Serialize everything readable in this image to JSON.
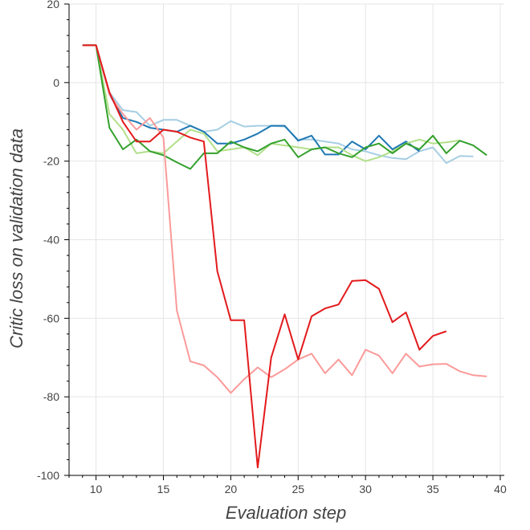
{
  "chart_data": {
    "type": "line",
    "title": "",
    "xlabel": "Evaluation step",
    "ylabel": "Critic loss on validation data",
    "xlim": [
      8,
      40.3
    ],
    "ylim": [
      -100,
      20
    ],
    "x_ticks": [
      10,
      15,
      20,
      25,
      30,
      35,
      40
    ],
    "y_ticks": [
      20,
      0,
      -20,
      -40,
      -60,
      -80,
      -100
    ],
    "x_tick_labels": [
      "10",
      "15",
      "20",
      "25",
      "30",
      "35",
      "40"
    ],
    "y_tick_labels": [
      "20",
      "0",
      "-20",
      "-40",
      "-60",
      "-80",
      "-100"
    ],
    "grid": true,
    "legend": "none",
    "series": [
      {
        "name": "light-blue",
        "color": "#a6cee3",
        "x": [
          9,
          10,
          11,
          12,
          13,
          14,
          15,
          16,
          17,
          18,
          19,
          20,
          21,
          22,
          23,
          24,
          25,
          26,
          27,
          28,
          29,
          30,
          31,
          32,
          33,
          34,
          35,
          36,
          37,
          38
        ],
        "values": [
          9.5,
          9.5,
          -2.5,
          -7,
          -7.5,
          -11,
          -9.5,
          -9.5,
          -11,
          -12.5,
          -12,
          -9.8,
          -11.2,
          -11,
          -11,
          -11.2,
          -14.5,
          -14.5,
          -15,
          -15.5,
          -17,
          -17.5,
          -18.5,
          -19.2,
          -19.5,
          -17.5,
          -16.5,
          -20.5,
          -18.7,
          -18.8
        ]
      },
      {
        "name": "dark-blue",
        "color": "#1f78b4",
        "x": [
          9,
          10,
          11,
          12,
          13,
          14,
          15,
          16,
          17,
          18,
          19,
          20,
          21,
          22,
          23,
          24,
          25,
          26,
          27,
          28,
          29,
          30,
          31,
          32,
          33,
          34
        ],
        "values": [
          9.5,
          9.5,
          -3,
          -9,
          -10,
          -11.5,
          -12,
          -12.5,
          -11,
          -12.5,
          -15.5,
          -15.5,
          -14.5,
          -13,
          -11,
          -11,
          -14.8,
          -13.5,
          -18.3,
          -18.3,
          -15,
          -17,
          -13.5,
          -17,
          -15,
          -17.5
        ]
      },
      {
        "name": "light-green",
        "color": "#b2df8a",
        "x": [
          9,
          10,
          11,
          12,
          13,
          14,
          15,
          16,
          17,
          18,
          19,
          20,
          21,
          22,
          23,
          24,
          25,
          26,
          27,
          28,
          29,
          30,
          31,
          32,
          33,
          34,
          35,
          36,
          37
        ],
        "values": [
          9.5,
          9.5,
          -8,
          -12,
          -18,
          -17.5,
          -18,
          -15,
          -12,
          -13,
          -17.5,
          -17,
          -16.5,
          -18.5,
          -15.5,
          -16,
          -16.5,
          -17,
          -16.5,
          -16.5,
          -18.5,
          -20,
          -19,
          -17.5,
          -15.5,
          -14.5,
          -15.5,
          -15.2,
          -14.7
        ]
      },
      {
        "name": "dark-green",
        "color": "#33a02c",
        "x": [
          9,
          10,
          11,
          12,
          13,
          14,
          15,
          16,
          17,
          18,
          19,
          20,
          21,
          22,
          23,
          24,
          25,
          26,
          27,
          28,
          29,
          30,
          31,
          32,
          33,
          34,
          35,
          36,
          37,
          38,
          39
        ],
        "values": [
          9.5,
          9.5,
          -11.5,
          -17,
          -14.5,
          -17.5,
          -18.5,
          -20.3,
          -22,
          -18,
          -18,
          -15,
          -16.5,
          -17.5,
          -15.5,
          -14.5,
          -19,
          -17,
          -16.5,
          -18,
          -19,
          -16.5,
          -15.5,
          -18,
          -15.5,
          -17,
          -13.5,
          -18,
          -14.8,
          -16,
          -18.5
        ]
      },
      {
        "name": "pink",
        "color": "#fb9a99",
        "x": [
          9,
          10,
          11,
          12,
          13,
          14,
          15,
          16,
          17,
          18,
          19,
          20,
          21,
          22,
          23,
          24,
          25,
          26,
          27,
          28,
          29,
          30,
          31,
          32,
          33,
          34,
          35,
          36,
          37,
          38,
          39
        ],
        "values": [
          9.5,
          9.5,
          -3,
          -8,
          -12,
          -9,
          -14,
          -58,
          -71,
          -72,
          -75,
          -79,
          -75.5,
          -72.5,
          -75,
          -73,
          -70.5,
          -69,
          -74,
          -70.5,
          -74.5,
          -68,
          -69.5,
          -74,
          -69,
          -72.3,
          -71.7,
          -71.6,
          -73.5,
          -74.5,
          -74.8
        ]
      },
      {
        "name": "red",
        "color": "#e31a1c",
        "x": [
          9,
          10,
          11,
          12,
          13,
          14,
          15,
          16,
          17,
          18,
          19,
          20,
          21,
          22,
          23,
          24,
          25,
          26,
          27,
          28,
          29,
          30,
          31,
          32,
          33,
          34,
          35,
          36
        ],
        "values": [
          9.5,
          9.5,
          -2.5,
          -10,
          -15,
          -15,
          -12,
          -12.5,
          -14,
          -15,
          -48,
          -60.5,
          -60.5,
          -98,
          -70,
          -59,
          -70.5,
          -59.5,
          -57.5,
          -56.5,
          -50.5,
          -50.3,
          -52.5,
          -61,
          -58.5,
          -68,
          -64.5,
          -63.3
        ]
      }
    ]
  }
}
